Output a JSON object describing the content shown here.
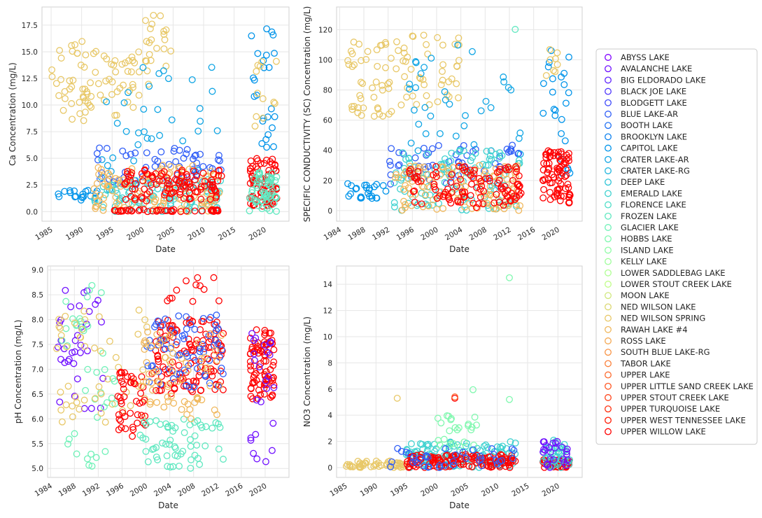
{
  "legend": {
    "entries": [
      {
        "name": "ABYSS LAKE",
        "color": "#8000ff"
      },
      {
        "name": "AVALANCHE LAKE",
        "color": "#7010ff"
      },
      {
        "name": "BIG ELDORADO LAKE",
        "color": "#6025fe"
      },
      {
        "name": "BLACK JOE LAKE",
        "color": "#5038fc"
      },
      {
        "name": "BLODGETT LAKE",
        "color": "#404bfa"
      },
      {
        "name": "BLUE LAKE-AR",
        "color": "#305ef7"
      },
      {
        "name": "BOOTH LAKE",
        "color": "#2070f3"
      },
      {
        "name": "BROOKLYN LAKE",
        "color": "#1083ef"
      },
      {
        "name": "CAPITOL LAKE",
        "color": "#0094ea"
      },
      {
        "name": "CRATER LAKE-AR",
        "color": "#10a5e4"
      },
      {
        "name": "CRATER LAKE-RG",
        "color": "#20b5de"
      },
      {
        "name": "DEEP LAKE",
        "color": "#30c4d7"
      },
      {
        "name": "EMERALD LAKE",
        "color": "#40d2d0"
      },
      {
        "name": "FLORENCE LAKE",
        "color": "#50dec8"
      },
      {
        "name": "FROZEN LAKE",
        "color": "#60e8c0"
      },
      {
        "name": "GLACIER LAKE",
        "color": "#70f1b8"
      },
      {
        "name": "HOBBS LAKE",
        "color": "#80f8af"
      },
      {
        "name": "ISLAND LAKE",
        "color": "#90fca6"
      },
      {
        "name": "KELLY LAKE",
        "color": "#a0fe9c"
      },
      {
        "name": "LOWER SADDLEBAG LAKE",
        "color": "#b0ff93"
      },
      {
        "name": "LOWER STOUT CREEK LAKE",
        "color": "#c0fd88"
      },
      {
        "name": "MOON LAKE",
        "color": "#d0e87e"
      },
      {
        "name": "NED WILSON LAKE",
        "color": "#dcd873"
      },
      {
        "name": "NED WILSON SPRING",
        "color": "#e8c868"
      },
      {
        "name": "RAWAH LAKE #4",
        "color": "#f0b85d"
      },
      {
        "name": "ROSS LAKE",
        "color": "#f4a852"
      },
      {
        "name": "SOUTH BLUE LAKE-RG",
        "color": "#f89446"
      },
      {
        "name": "TABOR LAKE",
        "color": "#fb803b"
      },
      {
        "name": "UPPER LAKE",
        "color": "#fd6c30"
      },
      {
        "name": "UPPER LITTLE SAND CREEK LAKE",
        "color": "#ff5825"
      },
      {
        "name": "UPPER STOUT CREEK LAKE",
        "color": "#ff441a"
      },
      {
        "name": "UPPER TURQUOISE LAKE",
        "color": "#ff300f"
      },
      {
        "name": "UPPER WEST TENNESSEE LAKE",
        "color": "#ff1c05"
      },
      {
        "name": "UPPER WILLOW LAKE",
        "color": "#ff0000"
      }
    ]
  },
  "chart_data": [
    {
      "type": "scatter",
      "xlabel": "Date",
      "ylabel": "Ca Concentration (mg/L)",
      "xlim": [
        1983.5,
        2024
      ],
      "ylim": [
        -0.9,
        19.2
      ],
      "x_ticks": [
        1985,
        1990,
        1995,
        2000,
        2005,
        2010,
        2015,
        2020
      ],
      "x_tick_labels": [
        "1985",
        "1990",
        "1995",
        "2000",
        "2005",
        "2010",
        "2015",
        "2020"
      ],
      "y_ticks": [
        0.0,
        2.5,
        5.0,
        7.5,
        10.0,
        12.5,
        15.0,
        17.5
      ],
      "y_tick_labels": [
        "0.0",
        "2.5",
        "5.0",
        "7.5",
        "10.0",
        "12.5",
        "15.0",
        "17.5"
      ],
      "grid": true,
      "clusters": [
        {
          "series": "NED WILSON SPRING",
          "x_range": [
            1985,
            1993
          ],
          "y_range": [
            8.5,
            16
          ],
          "count": 45
        },
        {
          "series": "NED WILSON SPRING",
          "x_range": [
            1993,
            2001
          ],
          "y_range": [
            9,
            15
          ],
          "count": 35
        },
        {
          "series": "NED WILSON SPRING",
          "x_range": [
            2000,
            2005
          ],
          "y_range": [
            13.5,
            18.5
          ],
          "count": 20
        },
        {
          "series": "CAPITOL LAKE",
          "x_range": [
            1986,
            1993
          ],
          "y_range": [
            1,
            2
          ],
          "count": 20
        },
        {
          "series": "BLUE LAKE-AR",
          "x_range": [
            1992,
            2013
          ],
          "y_range": [
            2.5,
            6
          ],
          "count": 60
        },
        {
          "series": "CRATER LAKE-AR",
          "x_range": [
            1993,
            2013
          ],
          "y_range": [
            1.5,
            14
          ],
          "count": 40
        },
        {
          "series": "EMERALD LAKE",
          "x_range": [
            1992,
            2013
          ],
          "y_range": [
            0,
            3
          ],
          "count": 100
        },
        {
          "series": "RAWAH LAKE #4",
          "x_range": [
            1992,
            2013
          ],
          "y_range": [
            0,
            4.5
          ],
          "count": 120
        },
        {
          "series": "UPPER WILLOW LAKE",
          "x_range": [
            1997,
            2013
          ],
          "y_range": [
            1,
            4
          ],
          "count": 110
        },
        {
          "series": "UPPER WILLOW LAKE",
          "x_range": [
            1995,
            2013
          ],
          "y_range": [
            0,
            0.2
          ],
          "count": 40
        },
        {
          "series": "CAPITOL LAKE",
          "x_range": [
            2017.5,
            2022
          ],
          "y_range": [
            6,
            17.5
          ],
          "count": 25
        },
        {
          "series": "UPPER WILLOW LAKE",
          "x_range": [
            2017.5,
            2022
          ],
          "y_range": [
            0.5,
            5
          ],
          "count": 80
        },
        {
          "series": "FROZEN LAKE",
          "x_range": [
            2017.5,
            2022
          ],
          "y_range": [
            0,
            4
          ],
          "count": 60
        },
        {
          "series": "NED WILSON SPRING",
          "x_range": [
            2018,
            2022
          ],
          "y_range": [
            8,
            15
          ],
          "count": 12
        }
      ]
    },
    {
      "type": "scatter",
      "xlabel": "Date",
      "ylabel": "SPECIFIC CONDUCTIVITY (SC) Concentration (mg/L)",
      "xlim": [
        1983.5,
        2024
      ],
      "ylim": [
        -7,
        135
      ],
      "x_ticks": [
        1984,
        1988,
        1992,
        1996,
        2000,
        2004,
        2008,
        2012,
        2016,
        2020
      ],
      "x_tick_labels": [
        "1984",
        "1988",
        "1992",
        "1996",
        "2000",
        "2004",
        "2008",
        "2012",
        "2016",
        "2020"
      ],
      "y_ticks": [
        0,
        20,
        40,
        60,
        80,
        100,
        120
      ],
      "y_tick_labels": [
        "0",
        "20",
        "40",
        "60",
        "80",
        "100",
        "120"
      ],
      "grid": true,
      "clusters": [
        {
          "series": "NED WILSON SPRING",
          "x_range": [
            1985,
            1993
          ],
          "y_range": [
            62,
            112
          ],
          "count": 45
        },
        {
          "series": "NED WILSON SPRING",
          "x_range": [
            1993,
            2004
          ],
          "y_range": [
            70,
            118
          ],
          "count": 45
        },
        {
          "series": "CAPITOL LAKE",
          "x_range": [
            1985,
            1992
          ],
          "y_range": [
            8,
            18
          ],
          "count": 25
        },
        {
          "series": "BLUE LAKE-AR",
          "x_range": [
            1992,
            2014
          ],
          "y_range": [
            15,
            45
          ],
          "count": 60
        },
        {
          "series": "CRATER LAKE-AR",
          "x_range": [
            1995,
            2014
          ],
          "y_range": [
            30,
            110
          ],
          "count": 35
        },
        {
          "series": "EMERALD LAKE",
          "x_range": [
            1993,
            2014
          ],
          "y_range": [
            0,
            40
          ],
          "count": 110
        },
        {
          "series": "RAWAH LAKE #4",
          "x_range": [
            1993,
            2014
          ],
          "y_range": [
            0,
            30
          ],
          "count": 110
        },
        {
          "series": "UPPER WILLOW LAKE",
          "x_range": [
            1995,
            2014
          ],
          "y_range": [
            2,
            30
          ],
          "count": 110
        },
        {
          "series": "FROZEN LAKE",
          "x_range": [
            2012,
            2013.5
          ],
          "y_range": [
            120,
            130
          ],
          "count": 1
        },
        {
          "series": "CAPITOL LAKE",
          "x_range": [
            2017.5,
            2022
          ],
          "y_range": [
            20,
            110
          ],
          "count": 25
        },
        {
          "series": "NED WILSON SPRING",
          "x_range": [
            2018,
            2022
          ],
          "y_range": [
            80,
            115
          ],
          "count": 8
        },
        {
          "series": "UPPER WILLOW LAKE",
          "x_range": [
            2017.5,
            2022
          ],
          "y_range": [
            5,
            40
          ],
          "count": 80
        }
      ]
    },
    {
      "type": "scatter",
      "xlabel": "Date",
      "ylabel": "pH Concentration (mg/L)",
      "xlim": [
        1983.5,
        2024
      ],
      "ylim": [
        4.82,
        9.08
      ],
      "x_ticks": [
        1984,
        1988,
        1992,
        1996,
        2000,
        2004,
        2008,
        2012,
        2016,
        2020
      ],
      "x_tick_labels": [
        "1984",
        "1988",
        "1992",
        "1996",
        "2000",
        "2004",
        "2008",
        "2012",
        "2016",
        "2020"
      ],
      "y_ticks": [
        5.0,
        5.5,
        6.0,
        6.5,
        7.0,
        7.5,
        8.0,
        8.5,
        9.0
      ],
      "y_tick_labels": [
        "5.0",
        "5.5",
        "6.0",
        "6.5",
        "7.0",
        "7.5",
        "8.0",
        "8.5",
        "9.0"
      ],
      "grid": true,
      "clusters": [
        {
          "series": "AVALANCHE LAKE",
          "x_range": [
            1985,
            1993
          ],
          "y_range": [
            6.2,
            8.6
          ],
          "count": 35
        },
        {
          "series": "GLACIER LAKE",
          "x_range": [
            1985,
            1995
          ],
          "y_range": [
            5.0,
            8.8
          ],
          "count": 40
        },
        {
          "series": "NED WILSON SPRING",
          "x_range": [
            1985,
            2001
          ],
          "y_range": [
            5.9,
            8.2
          ],
          "count": 50
        },
        {
          "series": "UPPER WILLOW LAKE",
          "x_range": [
            1995,
            2000
          ],
          "y_range": [
            5.6,
            7.0
          ],
          "count": 45
        },
        {
          "series": "FROZEN LAKE",
          "x_range": [
            1999,
            2013
          ],
          "y_range": [
            5.0,
            6.0
          ],
          "count": 60
        },
        {
          "series": "UPPER WILLOW LAKE",
          "x_range": [
            2001,
            2013
          ],
          "y_range": [
            6.5,
            8.0
          ],
          "count": 130
        },
        {
          "series": "BLUE LAKE-AR",
          "x_range": [
            2000,
            2013
          ],
          "y_range": [
            6.6,
            8.1
          ],
          "count": 70
        },
        {
          "series": "RAWAH LAKE #4",
          "x_range": [
            1999,
            2013
          ],
          "y_range": [
            6.0,
            7.8
          ],
          "count": 70
        },
        {
          "series": "UPPER WILLOW LAKE",
          "x_range": [
            2003,
            2012.5
          ],
          "y_range": [
            8.3,
            8.9
          ],
          "count": 12
        },
        {
          "series": "UPPER WILLOW LAKE",
          "x_range": [
            2017.5,
            2021.5
          ],
          "y_range": [
            6.4,
            7.8
          ],
          "count": 80
        },
        {
          "series": "AVALANCHE LAKE",
          "x_range": [
            2017.5,
            2021.5
          ],
          "y_range": [
            5.1,
            7.8
          ],
          "count": 25
        }
      ]
    },
    {
      "type": "scatter",
      "xlabel": "Date",
      "ylabel": "NO3 Concentration (mg/L)",
      "xlim": [
        1983.5,
        2024
      ],
      "ylim": [
        -0.75,
        15.4
      ],
      "x_ticks": [
        1985,
        1990,
        1995,
        2000,
        2005,
        2010,
        2015,
        2020
      ],
      "x_tick_labels": [
        "1985",
        "1990",
        "1995",
        "2000",
        "2005",
        "2010",
        "2015",
        "2020"
      ],
      "y_ticks": [
        0,
        2,
        4,
        6,
        8,
        10,
        12,
        14
      ],
      "y_tick_labels": [
        "0",
        "2",
        "4",
        "6",
        "8",
        "10",
        "12",
        "14"
      ],
      "grid": true,
      "clusters": [
        {
          "series": "NED WILSON SPRING",
          "x_range": [
            1985,
            1995
          ],
          "y_range": [
            0,
            0.5
          ],
          "count": 50
        },
        {
          "series": "EMERALD LAKE",
          "x_range": [
            1995,
            2013
          ],
          "y_range": [
            0,
            2
          ],
          "count": 120
        },
        {
          "series": "HOBBS LAKE",
          "x_range": [
            2000,
            2007
          ],
          "y_range": [
            1.5,
            4
          ],
          "count": 25
        },
        {
          "series": "UPPER WILLOW LAKE",
          "x_range": [
            1995,
            2013
          ],
          "y_range": [
            0,
            1
          ],
          "count": 140
        },
        {
          "series": "BLUE LAKE-AR",
          "x_range": [
            1992,
            2013
          ],
          "y_range": [
            0,
            1.5
          ],
          "count": 40
        },
        {
          "series": "UPPER WILLOW LAKE",
          "x_range": [
            2017.5,
            2022
          ],
          "y_range": [
            0,
            0.6
          ],
          "count": 60
        },
        {
          "series": "EMERALD LAKE",
          "x_range": [
            2017.5,
            2022
          ],
          "y_range": [
            0,
            2.1
          ],
          "count": 40
        },
        {
          "series": "AVALANCHE LAKE",
          "x_range": [
            2017.5,
            2022
          ],
          "y_range": [
            0,
            2
          ],
          "count": 25
        }
      ],
      "points": [
        {
          "series": "NED WILSON SPRING",
          "x": 1993.5,
          "y": 5.3
        },
        {
          "series": "UPPER WILLOW LAKE",
          "x": 2003.0,
          "y": 5.3
        },
        {
          "series": "UPPER LAKE",
          "x": 2003.0,
          "y": 5.4
        },
        {
          "series": "HOBBS LAKE",
          "x": 2006.0,
          "y": 5.95
        },
        {
          "series": "HOBBS LAKE",
          "x": 2012.0,
          "y": 14.5
        },
        {
          "series": "HOBBS LAKE",
          "x": 2012.0,
          "y": 5.2
        }
      ]
    }
  ]
}
